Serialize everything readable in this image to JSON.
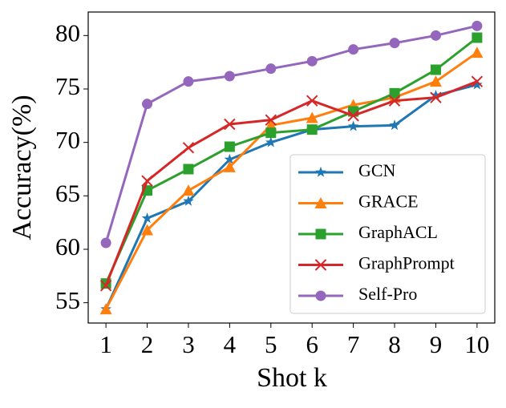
{
  "chart_data": {
    "type": "line",
    "x_label": "Shot k",
    "y_label": "Accuracy(%)",
    "x": [
      1,
      2,
      3,
      4,
      5,
      6,
      7,
      8,
      9,
      10
    ],
    "series": [
      {
        "name": "GCN",
        "color": "#1f77b4",
        "marker": "star",
        "values": [
          54.4,
          62.9,
          64.5,
          68.4,
          70.0,
          71.2,
          71.5,
          71.6,
          74.4,
          75.4
        ]
      },
      {
        "name": "GRACE",
        "color": "#ff7f0e",
        "marker": "triangle",
        "values": [
          54.4,
          61.8,
          65.5,
          67.7,
          71.6,
          72.3,
          73.5,
          74.2,
          75.7,
          78.4
        ]
      },
      {
        "name": "GraphACL",
        "color": "#2ca02c",
        "marker": "square",
        "values": [
          56.8,
          65.5,
          67.5,
          69.6,
          70.9,
          71.2,
          72.9,
          74.6,
          76.8,
          79.8
        ]
      },
      {
        "name": "GraphPrompt",
        "color": "#d62728",
        "marker": "x",
        "values": [
          56.6,
          66.4,
          69.5,
          71.7,
          72.1,
          73.9,
          72.5,
          73.9,
          74.2,
          75.7
        ]
      },
      {
        "name": "Self-Pro",
        "color": "#9467bd",
        "marker": "circle",
        "values": [
          60.6,
          73.6,
          75.7,
          76.2,
          76.9,
          77.6,
          78.7,
          79.3,
          80.0,
          80.9
        ]
      }
    ],
    "xlim": [
      0.57,
      10.43
    ],
    "xticks": [
      1,
      2,
      3,
      4,
      5,
      6,
      7,
      8,
      9,
      10
    ],
    "ylim": [
      53.1,
      82.2
    ],
    "yticks": [
      55,
      60,
      65,
      70,
      75,
      80
    ],
    "legend": "lower right"
  }
}
